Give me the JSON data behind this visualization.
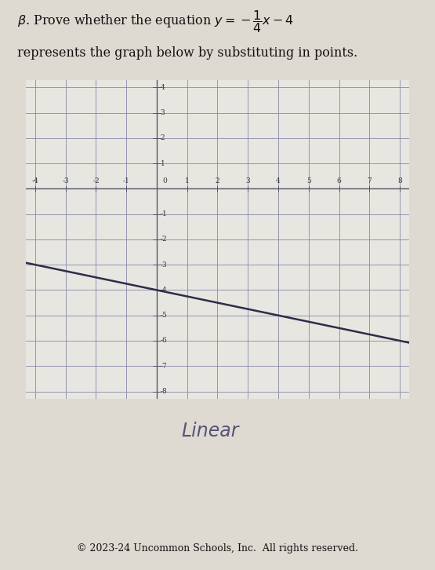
{
  "slope": -0.25,
  "intercept": -4,
  "x_min": -4,
  "x_max": 8,
  "y_min": -8,
  "y_max": 4,
  "x_ticks": [
    -4,
    -3,
    -2,
    -1,
    0,
    1,
    2,
    3,
    4,
    5,
    6,
    7,
    8
  ],
  "y_ticks": [
    -8,
    -7,
    -6,
    -5,
    -4,
    -3,
    -2,
    -1,
    0,
    1,
    2,
    3,
    4
  ],
  "grid_color": "#8888aa",
  "axis_color": "#555566",
  "line_color": "#2d2d4a",
  "bg_color": "#e8e6e0",
  "paper_color": "#dedad2",
  "handwritten_text": "Linear",
  "footer": "© 2023-24 Uncommon Schools, Inc.  All rights reserved.",
  "title_fontsize": 11.5,
  "tick_fontsize": 6.5,
  "footer_fontsize": 9,
  "line_width": 1.8,
  "grid_linewidth": 0.6,
  "axis_linewidth": 1.0
}
